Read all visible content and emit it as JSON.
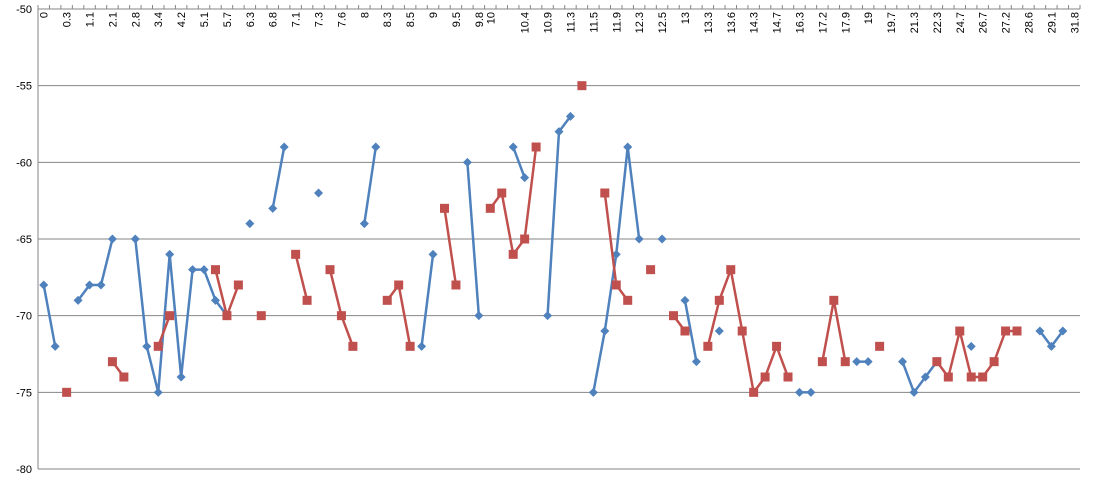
{
  "chart_data": {
    "type": "line",
    "title": "",
    "xlabel": "",
    "ylabel": "",
    "ylim": [
      -80,
      -50
    ],
    "y_ticks": [
      -50,
      -55,
      -60,
      -65,
      -70,
      -75,
      -80
    ],
    "grid": "horizontal",
    "x_label_orientation": "vertical",
    "x_axis_position": "top",
    "legend": "none",
    "categories": [
      "0",
      "0.2",
      "0.3",
      "0.6",
      "1.1",
      "1.4",
      "2.1",
      "2.4",
      "2.8",
      "3",
      "3.4",
      "3.7",
      "4.2",
      "4.5",
      "5.1",
      "5.4",
      "5.7",
      "6",
      "6.3",
      "6.5",
      "6.8",
      "6.9",
      "7.1",
      "7.2",
      "7.3",
      "7.5",
      "7.6",
      "7.8",
      "8",
      "8.1",
      "8.3",
      "8.4",
      "8.5",
      "8.8",
      "9",
      "9.2",
      "9.5",
      "9.6",
      "9.8",
      "10",
      "10",
      "10.2",
      "10.4",
      "10.7",
      "10.9",
      "11.1",
      "11.3",
      "11.4",
      "11.5",
      "11.7",
      "11.9",
      "12.1",
      "12.3",
      "12.4",
      "12.5",
      "12.8",
      "13",
      "13.1",
      "13.3",
      "13.5",
      "13.6",
      "14",
      "14.3",
      "14.5",
      "14.7",
      "15",
      "16.3",
      "16.7",
      "17.2",
      "17.5",
      "17.9",
      "18.2",
      "19",
      "19.4",
      "19.7",
      "20",
      "21.3",
      "21.7",
      "22.3",
      "23",
      "24.7",
      "25.3",
      "26.7",
      "27",
      "27.2",
      "27.8",
      "28.6",
      "28.8",
      "29.1",
      "29.5",
      "31.8"
    ],
    "tick_labels": [
      "0",
      "0.3",
      "1.1",
      "2.1",
      "2.8",
      "3.4",
      "4.2",
      "5.1",
      "5.7",
      "6.3",
      "6.8",
      "7.1",
      "7.3",
      "7.6",
      "8",
      "8.3",
      "8.5",
      "9",
      "9.5",
      "9.8",
      "10",
      "10.4",
      "10.9",
      "11.3",
      "11.5",
      "11.9",
      "12.3",
      "12.5",
      "13",
      "13.3",
      "13.6",
      "14.3",
      "14.7",
      "16.3",
      "17.2",
      "17.9",
      "19",
      "19.7",
      "21.3",
      "22.3",
      "24.7",
      "26.7",
      "27.2",
      "28.6",
      "29.1",
      "31.8"
    ],
    "series": [
      {
        "color": "#4F81BD",
        "marker": "diamond",
        "values": [
          -68,
          -72,
          null,
          -69,
          -68,
          -68,
          -65,
          null,
          -65,
          -72,
          -75,
          -66,
          -74,
          -67,
          -67,
          -69,
          -70,
          null,
          -64,
          null,
          -63,
          -59,
          null,
          null,
          -62,
          null,
          null,
          null,
          -64,
          -59,
          null,
          null,
          null,
          -72,
          -66,
          null,
          null,
          -60,
          -70,
          null,
          null,
          -59,
          -61,
          null,
          -70,
          -58,
          -57,
          null,
          -75,
          -71,
          -66,
          -59,
          -65,
          null,
          -65,
          null,
          -69,
          -73,
          null,
          -71,
          null,
          null,
          null,
          null,
          null,
          null,
          -75,
          -75,
          null,
          null,
          null,
          -73,
          -73,
          null,
          null,
          -73,
          -75,
          -74,
          -73,
          null,
          null,
          -72,
          null,
          null,
          null,
          null,
          null,
          -71,
          -72,
          -71,
          null
        ]
      },
      {
        "color": "#C0504D",
        "marker": "square",
        "values": [
          null,
          null,
          -75,
          null,
          null,
          null,
          -73,
          -74,
          null,
          null,
          -72,
          -70,
          null,
          null,
          null,
          -67,
          -70,
          -68,
          null,
          -70,
          null,
          null,
          -66,
          -69,
          null,
          -67,
          -70,
          -72,
          null,
          null,
          -69,
          -68,
          -72,
          null,
          null,
          -63,
          -68,
          null,
          null,
          -63,
          -62,
          -66,
          -65,
          -59,
          null,
          null,
          null,
          -55,
          null,
          -62,
          -68,
          -69,
          null,
          -67,
          null,
          -70,
          -71,
          null,
          -72,
          -69,
          -67,
          -71,
          -75,
          -74,
          -72,
          -74,
          null,
          null,
          -73,
          -69,
          -73,
          null,
          null,
          -72,
          null,
          null,
          null,
          null,
          -73,
          -74,
          -71,
          -74,
          -74,
          -73,
          -71,
          -71,
          null,
          null,
          null,
          null,
          null
        ]
      }
    ]
  }
}
